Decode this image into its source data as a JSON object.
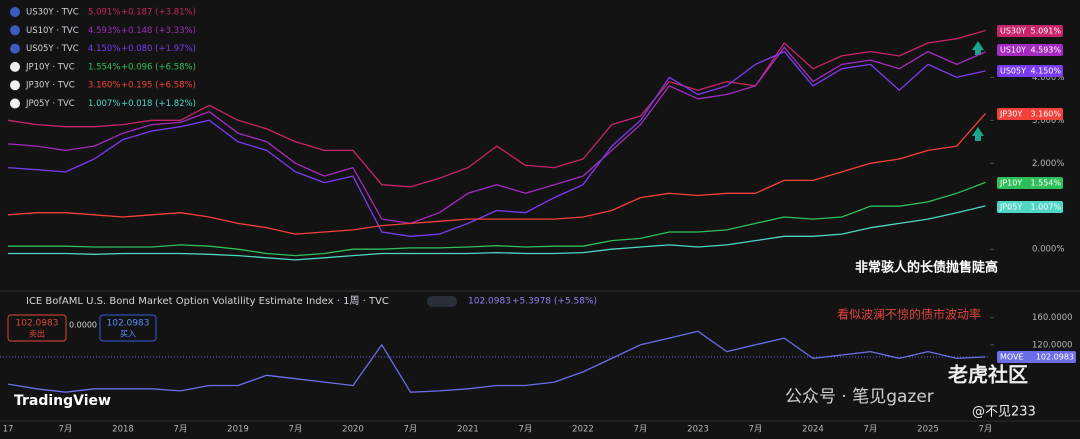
{
  "chart_data": [
    {
      "type": "line",
      "annotation": "非常骇人的长债抛售陡高",
      "ylim": [
        -0.95,
        5.8
      ],
      "yticks": [
        {
          "value": 0,
          "label": "0.000%"
        },
        {
          "value": 2,
          "label": "2.000%"
        },
        {
          "value": 3,
          "label": "3.000%"
        },
        {
          "value": 4,
          "label": "4.000%"
        }
      ],
      "series": [
        {
          "name": "US30Y · TVC",
          "tag": "US30Y",
          "last_label": "5.091%",
          "change": "+0.187 (+3.81%)",
          "color": "#c8246a",
          "values": [
            3.0,
            2.9,
            2.85,
            2.85,
            2.9,
            3.0,
            3.0,
            3.35,
            3.0,
            2.8,
            2.5,
            2.3,
            2.3,
            1.5,
            1.45,
            1.65,
            1.9,
            2.4,
            1.95,
            1.9,
            2.1,
            2.9,
            3.1,
            3.9,
            3.7,
            3.9,
            3.8,
            4.8,
            4.2,
            4.5,
            4.6,
            4.5,
            4.8,
            4.9,
            5.091
          ]
        },
        {
          "name": "US10Y · TVC",
          "tag": "US10Y",
          "last_label": "4.593%",
          "change": "+0.148 (+3.33%)",
          "color": "#a42bbf",
          "values": [
            2.45,
            2.4,
            2.3,
            2.4,
            2.7,
            2.9,
            2.95,
            3.2,
            2.7,
            2.5,
            2.0,
            1.7,
            1.9,
            0.7,
            0.6,
            0.85,
            1.3,
            1.5,
            1.3,
            1.5,
            1.7,
            2.3,
            2.9,
            3.8,
            3.5,
            3.6,
            3.8,
            4.7,
            3.9,
            4.3,
            4.4,
            4.2,
            4.6,
            4.3,
            4.593
          ]
        },
        {
          "name": "US05Y · TVC",
          "tag": "US05Y",
          "last_label": "4.150%",
          "change": "+0.080 (+1.97%)",
          "color": "#7a3cf0",
          "values": [
            1.9,
            1.85,
            1.8,
            2.1,
            2.55,
            2.75,
            2.85,
            3.0,
            2.5,
            2.3,
            1.8,
            1.55,
            1.7,
            0.4,
            0.3,
            0.35,
            0.6,
            0.9,
            0.85,
            1.2,
            1.5,
            2.4,
            3.0,
            4.0,
            3.6,
            3.8,
            4.3,
            4.6,
            3.8,
            4.2,
            4.3,
            3.7,
            4.3,
            4.0,
            4.15
          ]
        },
        {
          "name": "JP10Y · TVC",
          "tag": "JP10Y",
          "last_label": "1.554%",
          "change": "+0.096 (+6.58%)",
          "color": "#2fbf5a",
          "values": [
            0.07,
            0.07,
            0.07,
            0.05,
            0.05,
            0.05,
            0.1,
            0.07,
            0.0,
            -0.1,
            -0.15,
            -0.1,
            0.0,
            0.0,
            0.03,
            0.03,
            0.05,
            0.08,
            0.05,
            0.07,
            0.07,
            0.2,
            0.25,
            0.4,
            0.4,
            0.45,
            0.6,
            0.75,
            0.7,
            0.75,
            1.0,
            1.0,
            1.1,
            1.3,
            1.554
          ]
        },
        {
          "name": "JP30Y · TVC",
          "tag": "JP30Y",
          "last_label": "3.160%",
          "change": "+0.195 (+6.58%)",
          "color": "#f2413a",
          "values": [
            0.8,
            0.85,
            0.85,
            0.8,
            0.75,
            0.8,
            0.85,
            0.75,
            0.6,
            0.5,
            0.35,
            0.4,
            0.45,
            0.55,
            0.6,
            0.65,
            0.7,
            0.7,
            0.7,
            0.7,
            0.75,
            0.9,
            1.2,
            1.3,
            1.25,
            1.3,
            1.3,
            1.6,
            1.6,
            1.8,
            2.0,
            2.1,
            2.3,
            2.4,
            3.16
          ]
        },
        {
          "name": "JP05Y · TVC",
          "tag": "JP05Y",
          "last_label": "1.007%",
          "change": "+0.018 (+1.82%)",
          "color": "#4fd6c4",
          "values": [
            -0.1,
            -0.1,
            -0.1,
            -0.12,
            -0.1,
            -0.1,
            -0.1,
            -0.12,
            -0.15,
            -0.2,
            -0.25,
            -0.2,
            -0.15,
            -0.1,
            -0.1,
            -0.1,
            -0.1,
            -0.08,
            -0.1,
            -0.1,
            -0.08,
            0.0,
            0.05,
            0.1,
            0.05,
            0.1,
            0.2,
            0.3,
            0.3,
            0.35,
            0.5,
            0.6,
            0.7,
            0.85,
            1.007
          ]
        }
      ]
    },
    {
      "type": "line",
      "title": "ICE BofAML U.S. Bond Market Option Volatility Estimate Index · 1周 · TVC",
      "annotation": "看似波澜不惊的债市波动率",
      "quote": "102.0983",
      "change": "+5.3978 (+5.58%)",
      "sell_price": "102.0983",
      "sell_label": "卖出",
      "spread": "0.0000",
      "buy_price": "102.0983",
      "buy_label": "买入",
      "tag": "MOVE",
      "last_label": "102.0983",
      "categories": [
        "17",
        null,
        "7月",
        null,
        "2018",
        null,
        "7月",
        null,
        "2019",
        null,
        "7月",
        null,
        "2020",
        null,
        "7月",
        null,
        "2021",
        null,
        "7月",
        null,
        "2022",
        null,
        "7月",
        null,
        "2023",
        null,
        "7月",
        null,
        "2024",
        null,
        "7月",
        null,
        "2025",
        null,
        "7月"
      ],
      "ylim": [
        9,
        198
      ],
      "yticks": [
        {
          "value": 120,
          "label": "120.0000"
        },
        {
          "value": 160,
          "label": "160.0000"
        }
      ],
      "series": [
        {
          "name": "MOVE",
          "color": "#6a6ee8",
          "values": [
            62,
            55,
            50,
            55,
            55,
            55,
            52,
            60,
            60,
            75,
            70,
            65,
            60,
            120,
            50,
            52,
            55,
            60,
            60,
            65,
            80,
            100,
            120,
            130,
            140,
            110,
            120,
            130,
            100,
            105,
            110,
            100,
            110,
            100,
            102.0983
          ]
        }
      ]
    },
    {
      "type": "watermark",
      "brand": "TradingView",
      "wechat": "公众号 · 笔见gazer",
      "community": "老虎社区",
      "user": "@不见233"
    }
  ]
}
